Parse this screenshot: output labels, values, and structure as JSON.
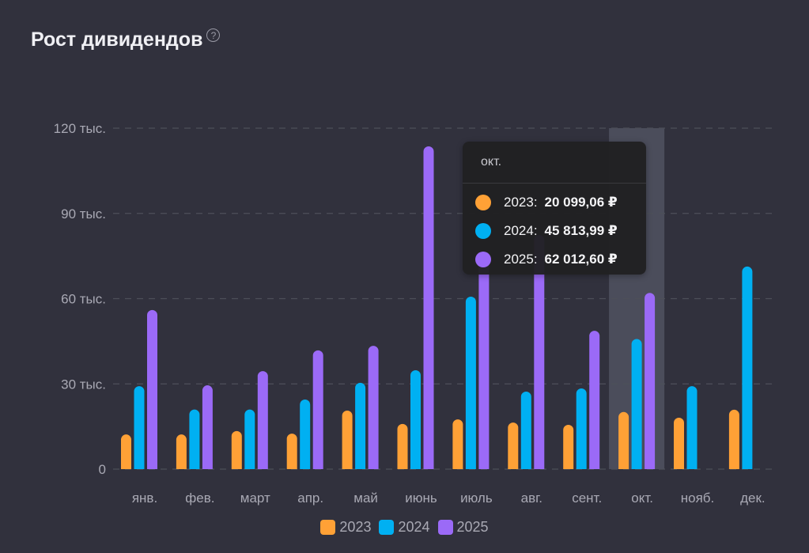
{
  "header": {
    "title": "Рост дивидендов",
    "help_icon": "?"
  },
  "colors": {
    "background": "#31313d",
    "grid": "#4d5059",
    "axis_text": "#a9a9b4",
    "highlight": "#4b4d5b",
    "s2023": "#ffa136",
    "s2024": "#00b0f2",
    "s2025": "#9b6af7"
  },
  "chart_data": {
    "type": "bar",
    "title": "Рост дивидендов",
    "xlabel": "",
    "ylabel": "",
    "ylim": [
      0,
      120000
    ],
    "y_ticks": [
      0,
      30000,
      60000,
      90000,
      120000
    ],
    "y_tick_labels": [
      "0",
      "30 тыс.",
      "60 тыс.",
      "90 тыс.",
      "120 тыс."
    ],
    "grid": true,
    "legend_position": "bottom-center",
    "categories": [
      "янв.",
      "фев.",
      "март",
      "апр.",
      "май",
      "июнь",
      "июль",
      "авг.",
      "сент.",
      "окт.",
      "нояб.",
      "дек."
    ],
    "series": [
      {
        "name": "2023",
        "color": "#ffa136",
        "values": [
          12200,
          12200,
          13400,
          12500,
          20600,
          15900,
          17500,
          16400,
          15600,
          20099.06,
          18100,
          20900
        ]
      },
      {
        "name": "2024",
        "color": "#00b0f2",
        "values": [
          29200,
          21000,
          21000,
          24500,
          30400,
          34800,
          60700,
          27300,
          28400,
          45813.99,
          29200,
          71300
        ]
      },
      {
        "name": "2025",
        "color": "#9b6af7",
        "values": [
          56000,
          29500,
          34500,
          41800,
          43400,
          113600,
          75000,
          82400,
          48700,
          62012.6,
          null,
          null
        ]
      }
    ],
    "highlighted_category": "окт."
  },
  "tooltip": {
    "title": "окт.",
    "rows": [
      {
        "year": "2023:",
        "value": "20 099,06 ₽",
        "color": "#ffa136"
      },
      {
        "year": "2024:",
        "value": "45 813,99 ₽",
        "color": "#00b0f2"
      },
      {
        "year": "2025:",
        "value": "62 012,60 ₽",
        "color": "#9b6af7"
      }
    ]
  },
  "legend": [
    {
      "label": "2023",
      "color": "#ffa136"
    },
    {
      "label": "2024",
      "color": "#00b0f2"
    },
    {
      "label": "2025",
      "color": "#9b6af7"
    }
  ]
}
